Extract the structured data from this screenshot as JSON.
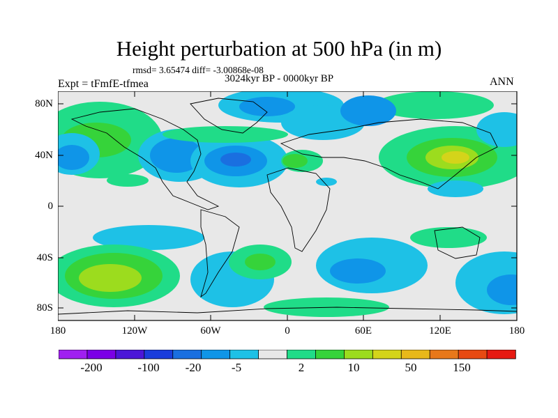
{
  "title": "Height perturbation at 500 hPa (in m)",
  "stats": "rmsd= 3.65474 diff= -3.00868e-08",
  "period": "3024kyr BP - 0000kyr BP",
  "experiment": "Expt = tFmfE-tfmea",
  "season": "ANN",
  "lat_labels": [
    "80N",
    "40N",
    "0",
    "40S",
    "80S"
  ],
  "lon_labels": [
    "180",
    "120W",
    "60W",
    "0",
    "60E",
    "120E",
    "180"
  ],
  "colorbar": {
    "colors": [
      "#a020f0",
      "#7b00e6",
      "#4b16d8",
      "#1a3ddc",
      "#1a6fe0",
      "#0f95e8",
      "#1ec1e6",
      "#e8e8e8",
      "#20dc88",
      "#36d33a",
      "#9cdc1e",
      "#d4d41a",
      "#e8b81a",
      "#e8781a",
      "#e84a12",
      "#e61a12"
    ],
    "labels": [
      "-200",
      "-100",
      "-20",
      "-5",
      "2",
      "10",
      "50",
      "150"
    ]
  },
  "map_colors": {
    "background": "#e8e8e8",
    "blue_light": "#1ec1e6",
    "blue_mid": "#0f95e8",
    "blue_dark": "#1a6fe0",
    "green": "#20dc88",
    "green_mid": "#36d33a",
    "yellow_green": "#9cdc1e",
    "yellow": "#d4d41a"
  }
}
